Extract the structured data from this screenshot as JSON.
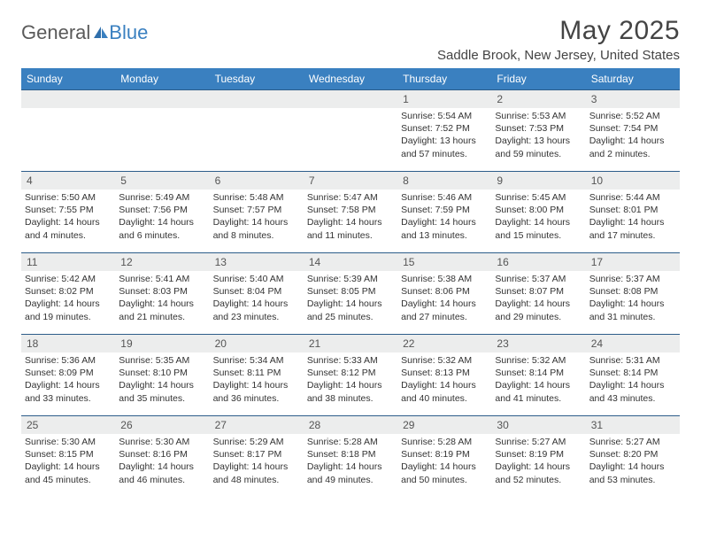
{
  "brand": {
    "general": "General",
    "blue": "Blue"
  },
  "title": "May 2025",
  "location": "Saddle Brook, New Jersey, United States",
  "colors": {
    "header_bg": "#3a80c0",
    "row_divider": "#2d5d8a",
    "daynum_bg": "#eceded",
    "text": "#333333",
    "logo_blue": "#3a80c0",
    "logo_grey": "#5a5a5a"
  },
  "weekdays": [
    "Sunday",
    "Monday",
    "Tuesday",
    "Wednesday",
    "Thursday",
    "Friday",
    "Saturday"
  ],
  "weeks": [
    [
      null,
      null,
      null,
      null,
      {
        "n": "1",
        "sunrise": "5:54 AM",
        "sunset": "7:52 PM",
        "daylight": "13 hours and 57 minutes."
      },
      {
        "n": "2",
        "sunrise": "5:53 AM",
        "sunset": "7:53 PM",
        "daylight": "13 hours and 59 minutes."
      },
      {
        "n": "3",
        "sunrise": "5:52 AM",
        "sunset": "7:54 PM",
        "daylight": "14 hours and 2 minutes."
      }
    ],
    [
      {
        "n": "4",
        "sunrise": "5:50 AM",
        "sunset": "7:55 PM",
        "daylight": "14 hours and 4 minutes."
      },
      {
        "n": "5",
        "sunrise": "5:49 AM",
        "sunset": "7:56 PM",
        "daylight": "14 hours and 6 minutes."
      },
      {
        "n": "6",
        "sunrise": "5:48 AM",
        "sunset": "7:57 PM",
        "daylight": "14 hours and 8 minutes."
      },
      {
        "n": "7",
        "sunrise": "5:47 AM",
        "sunset": "7:58 PM",
        "daylight": "14 hours and 11 minutes."
      },
      {
        "n": "8",
        "sunrise": "5:46 AM",
        "sunset": "7:59 PM",
        "daylight": "14 hours and 13 minutes."
      },
      {
        "n": "9",
        "sunrise": "5:45 AM",
        "sunset": "8:00 PM",
        "daylight": "14 hours and 15 minutes."
      },
      {
        "n": "10",
        "sunrise": "5:44 AM",
        "sunset": "8:01 PM",
        "daylight": "14 hours and 17 minutes."
      }
    ],
    [
      {
        "n": "11",
        "sunrise": "5:42 AM",
        "sunset": "8:02 PM",
        "daylight": "14 hours and 19 minutes."
      },
      {
        "n": "12",
        "sunrise": "5:41 AM",
        "sunset": "8:03 PM",
        "daylight": "14 hours and 21 minutes."
      },
      {
        "n": "13",
        "sunrise": "5:40 AM",
        "sunset": "8:04 PM",
        "daylight": "14 hours and 23 minutes."
      },
      {
        "n": "14",
        "sunrise": "5:39 AM",
        "sunset": "8:05 PM",
        "daylight": "14 hours and 25 minutes."
      },
      {
        "n": "15",
        "sunrise": "5:38 AM",
        "sunset": "8:06 PM",
        "daylight": "14 hours and 27 minutes."
      },
      {
        "n": "16",
        "sunrise": "5:37 AM",
        "sunset": "8:07 PM",
        "daylight": "14 hours and 29 minutes."
      },
      {
        "n": "17",
        "sunrise": "5:37 AM",
        "sunset": "8:08 PM",
        "daylight": "14 hours and 31 minutes."
      }
    ],
    [
      {
        "n": "18",
        "sunrise": "5:36 AM",
        "sunset": "8:09 PM",
        "daylight": "14 hours and 33 minutes."
      },
      {
        "n": "19",
        "sunrise": "5:35 AM",
        "sunset": "8:10 PM",
        "daylight": "14 hours and 35 minutes."
      },
      {
        "n": "20",
        "sunrise": "5:34 AM",
        "sunset": "8:11 PM",
        "daylight": "14 hours and 36 minutes."
      },
      {
        "n": "21",
        "sunrise": "5:33 AM",
        "sunset": "8:12 PM",
        "daylight": "14 hours and 38 minutes."
      },
      {
        "n": "22",
        "sunrise": "5:32 AM",
        "sunset": "8:13 PM",
        "daylight": "14 hours and 40 minutes."
      },
      {
        "n": "23",
        "sunrise": "5:32 AM",
        "sunset": "8:14 PM",
        "daylight": "14 hours and 41 minutes."
      },
      {
        "n": "24",
        "sunrise": "5:31 AM",
        "sunset": "8:14 PM",
        "daylight": "14 hours and 43 minutes."
      }
    ],
    [
      {
        "n": "25",
        "sunrise": "5:30 AM",
        "sunset": "8:15 PM",
        "daylight": "14 hours and 45 minutes."
      },
      {
        "n": "26",
        "sunrise": "5:30 AM",
        "sunset": "8:16 PM",
        "daylight": "14 hours and 46 minutes."
      },
      {
        "n": "27",
        "sunrise": "5:29 AM",
        "sunset": "8:17 PM",
        "daylight": "14 hours and 48 minutes."
      },
      {
        "n": "28",
        "sunrise": "5:28 AM",
        "sunset": "8:18 PM",
        "daylight": "14 hours and 49 minutes."
      },
      {
        "n": "29",
        "sunrise": "5:28 AM",
        "sunset": "8:19 PM",
        "daylight": "14 hours and 50 minutes."
      },
      {
        "n": "30",
        "sunrise": "5:27 AM",
        "sunset": "8:19 PM",
        "daylight": "14 hours and 52 minutes."
      },
      {
        "n": "31",
        "sunrise": "5:27 AM",
        "sunset": "8:20 PM",
        "daylight": "14 hours and 53 minutes."
      }
    ]
  ],
  "labels": {
    "sunrise": "Sunrise:",
    "sunset": "Sunset:",
    "daylight": "Daylight:"
  }
}
